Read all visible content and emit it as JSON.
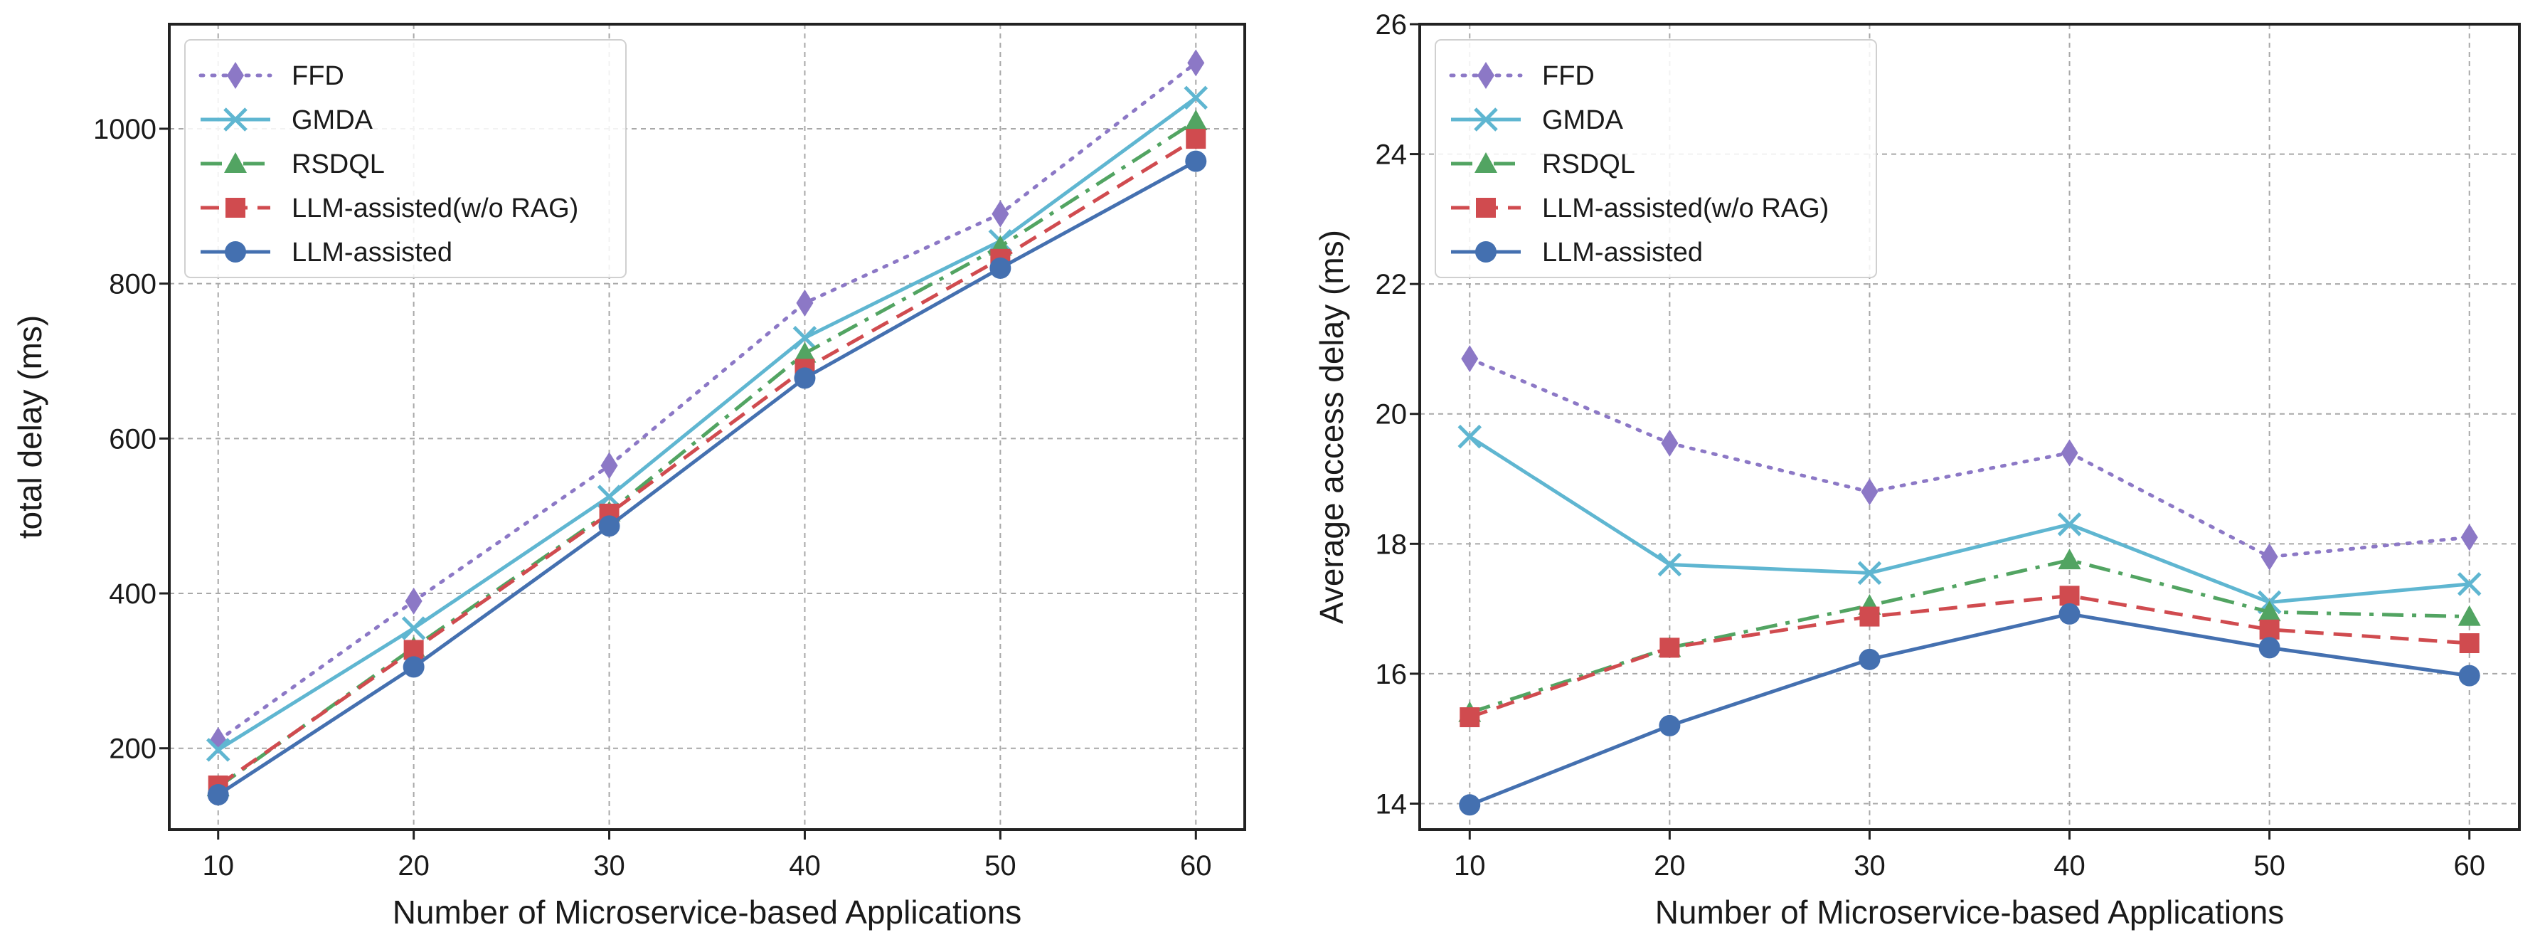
{
  "chart_data": [
    {
      "type": "line",
      "title": "",
      "xlabel": "Number of Microservice-based Applications",
      "ylabel": "total delay (ms)",
      "x": [
        10,
        20,
        30,
        40,
        50,
        60
      ],
      "xlim": [
        7.5,
        62.5
      ],
      "ylim": [
        95,
        1135
      ],
      "xticks": [
        10,
        20,
        30,
        40,
        50,
        60
      ],
      "yticks": [
        200,
        400,
        600,
        800,
        1000
      ],
      "grid": true,
      "legend_position": "top-left",
      "series": [
        {
          "name": "FFD",
          "values": [
            210,
            390,
            565,
            775,
            890,
            1085
          ]
        },
        {
          "name": "GMDA",
          "values": [
            198,
            355,
            525,
            730,
            855,
            1040
          ]
        },
        {
          "name": "RSDQL",
          "values": [
            150,
            330,
            505,
            710,
            848,
            1010
          ]
        },
        {
          "name": "LLM-assisted(w/o RAG)",
          "values": [
            152,
            327,
            503,
            690,
            832,
            987
          ]
        },
        {
          "name": "LLM-assisted",
          "values": [
            140,
            305,
            487,
            678,
            820,
            958
          ]
        }
      ]
    },
    {
      "type": "line",
      "title": "",
      "xlabel": "Number of Microservice-based Applications",
      "ylabel": "Average access delay (ms)",
      "x": [
        10,
        20,
        30,
        40,
        50,
        60
      ],
      "xlim": [
        7.5,
        62.5
      ],
      "ylim": [
        13.6,
        26
      ],
      "xticks": [
        10,
        20,
        30,
        40,
        50,
        60
      ],
      "yticks": [
        14,
        16,
        18,
        20,
        22,
        24,
        26
      ],
      "grid": true,
      "legend_position": "top-left",
      "series": [
        {
          "name": "FFD",
          "values": [
            20.85,
            19.55,
            18.8,
            19.4,
            17.8,
            18.1
          ]
        },
        {
          "name": "GMDA",
          "values": [
            19.65,
            17.68,
            17.55,
            18.3,
            17.1,
            17.38
          ]
        },
        {
          "name": "RSDQL",
          "values": [
            15.4,
            16.4,
            17.05,
            17.75,
            16.95,
            16.88
          ]
        },
        {
          "name": "LLM-assisted(w/o RAG)",
          "values": [
            15.33,
            16.4,
            16.88,
            17.2,
            16.68,
            16.47
          ]
        },
        {
          "name": "LLM-assisted",
          "values": [
            13.98,
            15.2,
            16.22,
            16.92,
            16.4,
            15.97
          ]
        }
      ]
    }
  ],
  "series_style": [
    {
      "color": "#8c78c6",
      "marker": "diamond",
      "dash": "dotted"
    },
    {
      "color": "#5fb6d1",
      "marker": "x",
      "dash": "solid"
    },
    {
      "color": "#52a462",
      "marker": "triangle",
      "dash": "dashdot"
    },
    {
      "color": "#d04b4f",
      "marker": "square",
      "dash": "dashed"
    },
    {
      "color": "#4470b0",
      "marker": "circle",
      "dash": "solid"
    }
  ]
}
